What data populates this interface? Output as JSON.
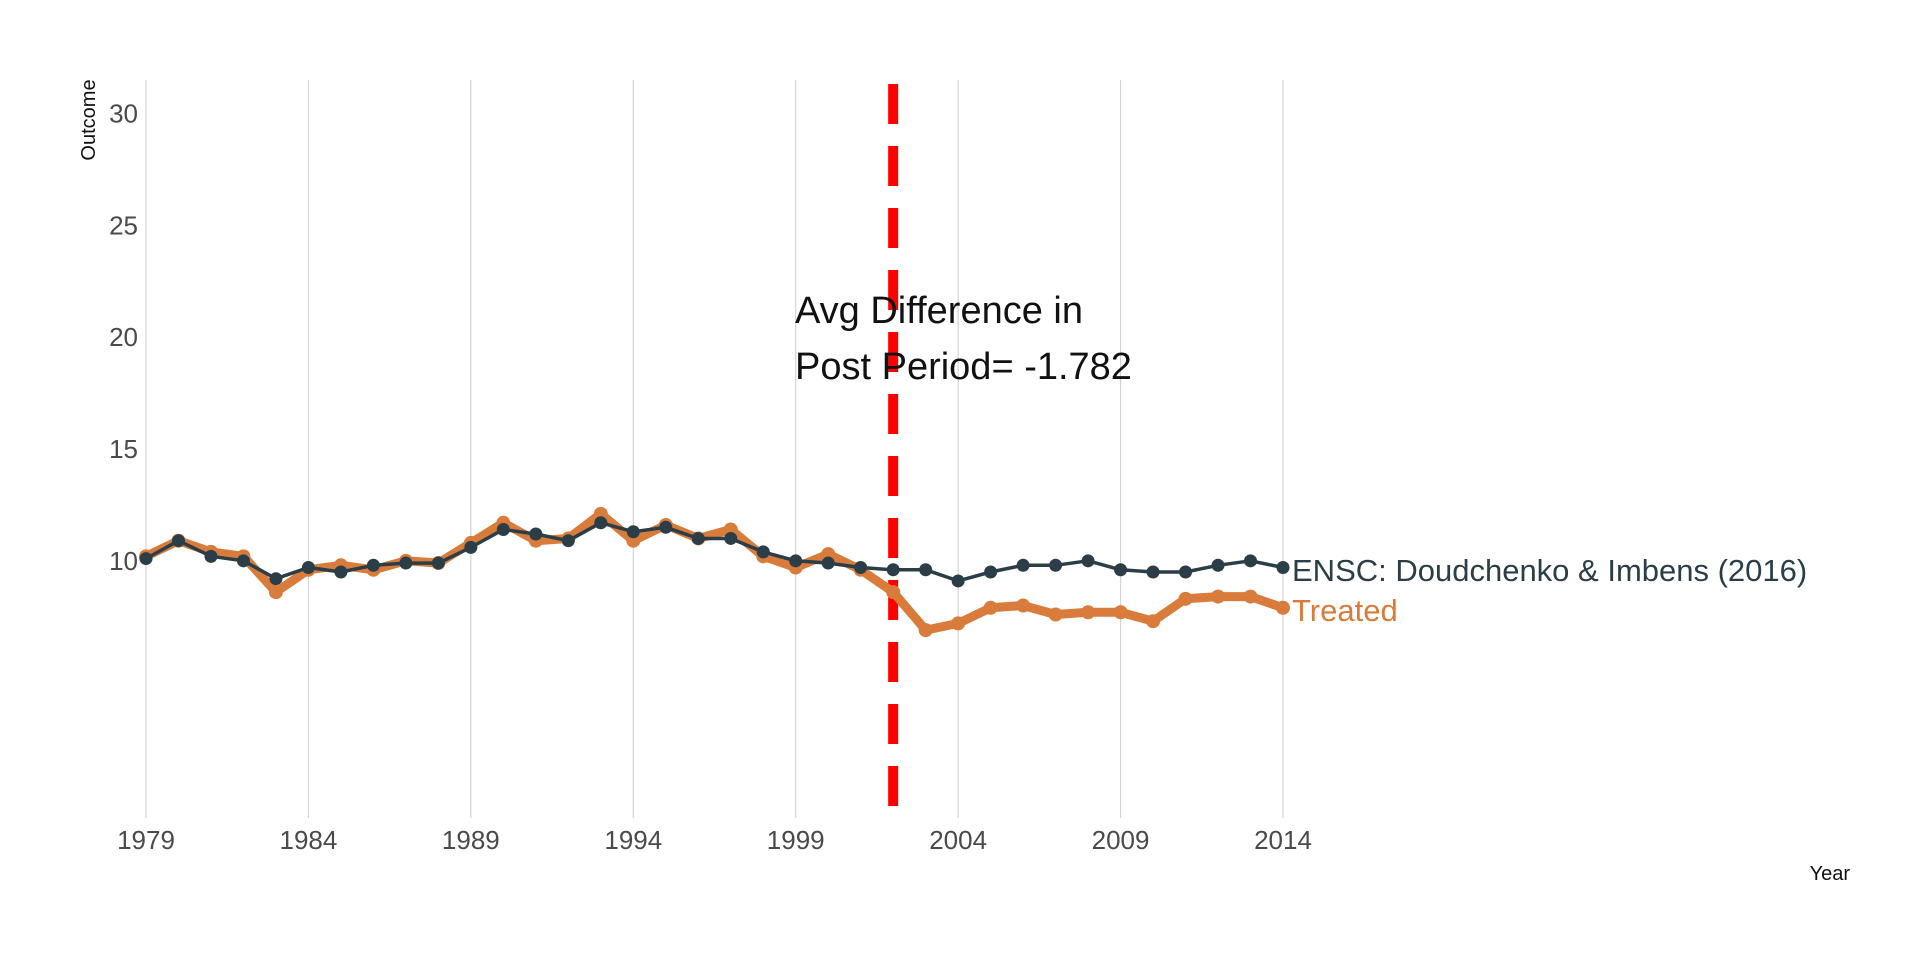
{
  "chart_data": {
    "type": "line",
    "xlabel": "Year",
    "ylabel": "Outcome",
    "xlim": [
      1979,
      2014
    ],
    "ylim": [
      -1.5,
      31.5
    ],
    "x_ticks": [
      1979,
      1984,
      1989,
      1994,
      1999,
      2004,
      2009,
      2014
    ],
    "y_ticks": [
      10,
      15,
      20,
      25,
      30
    ],
    "x_tick_labels": [
      "1979",
      "1984",
      "1989",
      "1994",
      "1999",
      "2004",
      "2009",
      "2014"
    ],
    "y_tick_labels": [
      "10",
      "15",
      "20",
      "25",
      "30"
    ],
    "grid": "vertical",
    "intervention_line": {
      "x": 2002,
      "color": "#ff0000",
      "style": "dashed"
    },
    "annotation": [
      "Avg Difference in",
      "Post Period= -1.782"
    ],
    "x": [
      1979,
      1980,
      1981,
      1982,
      1983,
      1984,
      1985,
      1986,
      1987,
      1988,
      1989,
      1990,
      1991,
      1992,
      1993,
      1994,
      1995,
      1996,
      1997,
      1998,
      1999,
      2000,
      2001,
      2002,
      2003,
      2004,
      2005,
      2006,
      2007,
      2008,
      2009,
      2010,
      2011,
      2012,
      2013,
      2014
    ],
    "series": [
      {
        "name": "ENSC: Doudchenko & Imbens (2016)",
        "color": "#2b3e47",
        "values": [
          10.1,
          10.9,
          10.2,
          10.0,
          9.2,
          9.7,
          9.5,
          9.8,
          9.9,
          9.9,
          10.6,
          11.4,
          11.2,
          10.9,
          11.7,
          11.3,
          11.5,
          11.0,
          11.0,
          10.4,
          10.0,
          9.9,
          9.7,
          9.6,
          9.6,
          9.1,
          9.5,
          9.8,
          9.8,
          10.0,
          9.6,
          9.5,
          9.5,
          9.8,
          10.0,
          9.7
        ]
      },
      {
        "name": "Treated",
        "color": "#d97b3a",
        "values": [
          10.2,
          10.9,
          10.4,
          10.2,
          8.6,
          9.6,
          9.8,
          9.6,
          10.0,
          9.9,
          10.8,
          11.7,
          10.9,
          11.0,
          12.1,
          10.9,
          11.6,
          11.0,
          11.4,
          10.2,
          9.7,
          10.3,
          9.6,
          8.6,
          6.9,
          7.2,
          7.9,
          8.0,
          7.6,
          7.7,
          7.7,
          7.3,
          8.3,
          8.4,
          8.4,
          7.9
        ]
      }
    ]
  }
}
